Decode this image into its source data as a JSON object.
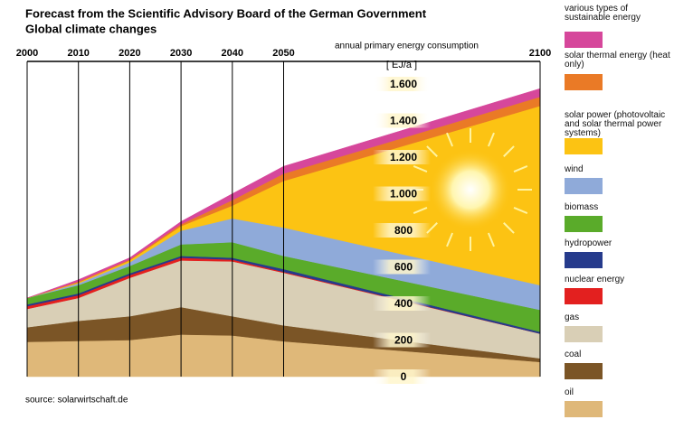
{
  "chart_data": {
    "type": "stacked-area",
    "title": "Forecast from the Scientific Advisory Board of the German Government",
    "subtitle": "Global climate changes",
    "y_label": "annual primary energy consumption",
    "y_unit": "[ EJ/a ]",
    "source": "source: solarwirtschaft.de",
    "x": [
      2000,
      2010,
      2020,
      2030,
      2040,
      2050,
      2100
    ],
    "xlim": [
      2000,
      2100
    ],
    "xticks": [
      2000,
      2010,
      2020,
      2030,
      2040,
      2050,
      2100
    ],
    "ylim": [
      0,
      1600
    ],
    "yticks": [
      0,
      200,
      400,
      600,
      800,
      {
        "value": 1000,
        "label": "1.000"
      },
      {
        "value": 1200,
        "label": "1.200"
      },
      {
        "value": 1400,
        "label": "1.400"
      },
      {
        "value": 1600,
        "label": "1.600"
      }
    ],
    "series": [
      {
        "name": "oil",
        "color": "#dfb879",
        "values": [
          190,
          195,
          200,
          230,
          225,
          193,
          80
        ]
      },
      {
        "name": "coal",
        "color": "#7b5526",
        "values": [
          80,
          110,
          130,
          150,
          105,
          87,
          20
        ]
      },
      {
        "name": "gas",
        "color": "#d9cfb6",
        "values": [
          100,
          125,
          210,
          255,
          300,
          288,
          135
        ]
      },
      {
        "name": "nuclear energy",
        "color": "#e3201f",
        "values": [
          15,
          15,
          15,
          15,
          10,
          5,
          0
        ]
      },
      {
        "name": "hydropower",
        "color": "#263b8c",
        "values": [
          10,
          10,
          10,
          10,
          10,
          15,
          10
        ]
      },
      {
        "name": "biomass",
        "color": "#5aab2a",
        "values": [
          35,
          45,
          40,
          63,
          85,
          72,
          120
        ]
      },
      {
        "name": "wind",
        "color": "#8faad9",
        "values": [
          0,
          10,
          20,
          75,
          130,
          155,
          135
        ]
      },
      {
        "name": "solar power (photovoltaic and solar thermal power systems)",
        "color": "#fcc313",
        "values": [
          0,
          5,
          10,
          25,
          70,
          255,
          980
        ]
      },
      {
        "name": "solar thermal energy (heat only)",
        "color": "#ea7a26",
        "values": [
          0,
          5,
          5,
          10,
          30,
          40,
          50
        ]
      },
      {
        "name": "various  types of sustainable energy",
        "color": "#d6479b",
        "values": [
          0,
          10,
          10,
          15,
          35,
          40,
          45
        ]
      }
    ]
  }
}
